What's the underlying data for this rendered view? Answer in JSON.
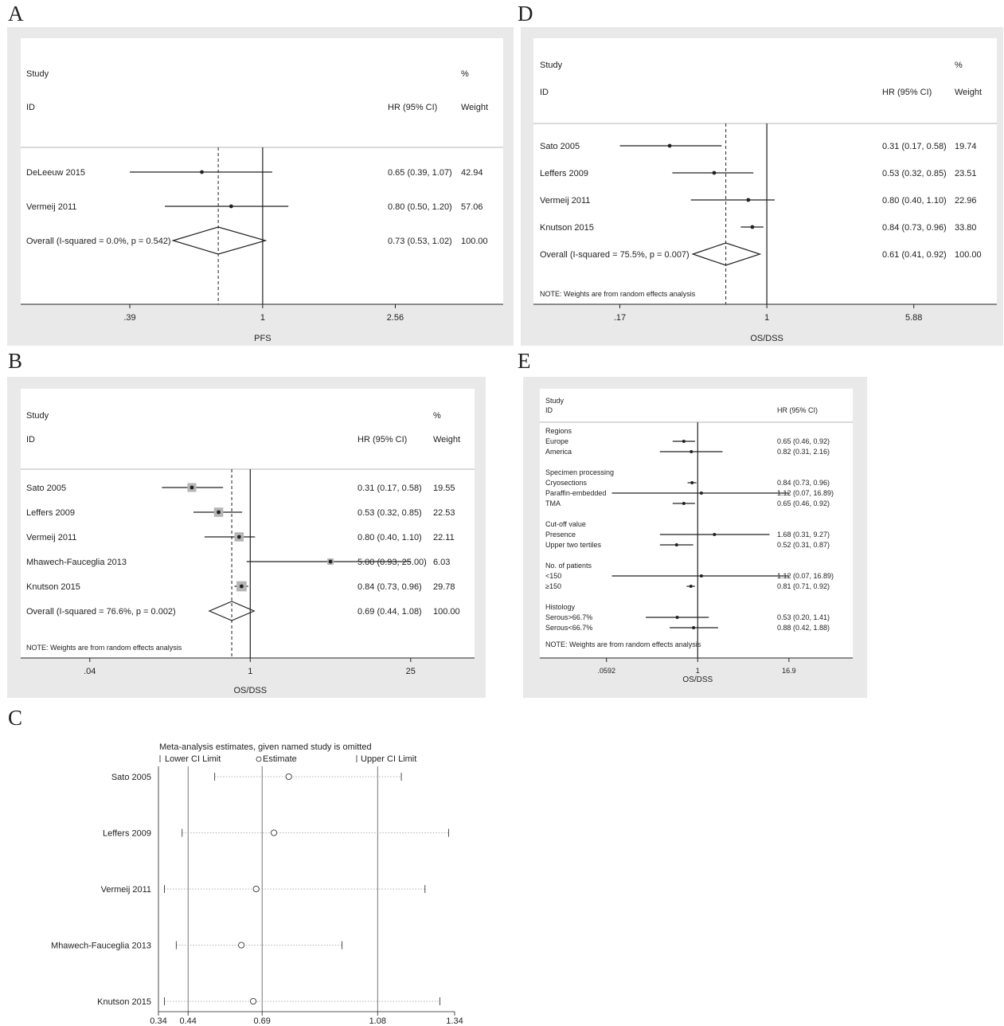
{
  "colors": {
    "panel_bg": "#e9e9e9",
    "plot_bg": "#ffffff",
    "ink": "#222222",
    "box": "#b5b5b5",
    "ci_dotted": "#999999"
  },
  "chart_data": [
    {
      "panel": "A",
      "type": "forest",
      "headers": {
        "study_top": "Study",
        "study_id": "ID",
        "hr": "HR (95% CI)",
        "weight_top": "%",
        "weight": "Weight"
      },
      "studies": [
        {
          "label": "DeLeeuw 2015",
          "hr": 0.65,
          "lo": 0.39,
          "hi": 1.07,
          "hr_text": "0.65 (0.39, 1.07)",
          "weight": "42.94"
        },
        {
          "label": "Vermeij 2011",
          "hr": 0.8,
          "lo": 0.5,
          "hi": 1.2,
          "hr_text": "0.80 (0.50, 1.20)",
          "weight": "57.06"
        }
      ],
      "overall": {
        "label": "Overall  (I-squared = 0.0%, p = 0.542)",
        "hr": 0.73,
        "lo": 0.53,
        "hi": 1.02,
        "hr_text": "0.73 (0.53, 1.02)",
        "weight": "100.00"
      },
      "note": "",
      "x_ticks": [
        {
          "value": 0.39,
          "label": ".39"
        },
        {
          "value": 1,
          "label": "1"
        },
        {
          "value": 2.56,
          "label": "2.56"
        }
      ],
      "x_scale": "log",
      "xlim": [
        0.18,
        5.5
      ],
      "xlabel": "PFS",
      "reference": 1,
      "box_style": "dot"
    },
    {
      "panel": "B",
      "type": "forest",
      "headers": {
        "study_top": "Study",
        "study_id": "ID",
        "hr": "HR (95% CI)",
        "weight_top": "%",
        "weight": "Weight"
      },
      "studies": [
        {
          "label": "Sato 2005",
          "hr": 0.31,
          "lo": 0.17,
          "hi": 0.58,
          "hr_text": "0.31 (0.17, 0.58)",
          "weight": "19.55"
        },
        {
          "label": "Leffers 2009",
          "hr": 0.53,
          "lo": 0.32,
          "hi": 0.85,
          "hr_text": "0.53 (0.32, 0.85)",
          "weight": "22.53"
        },
        {
          "label": "Vermeij 2011",
          "hr": 0.8,
          "lo": 0.4,
          "hi": 1.1,
          "hr_text": "0.80 (0.40, 1.10)",
          "weight": "22.11"
        },
        {
          "label": "Mhawech-Fauceglia 2013",
          "hr": 5.0,
          "lo": 0.93,
          "hi": 25.0,
          "hr_text": "5.00 (0.93, 25.00)",
          "weight": "6.03"
        },
        {
          "label": "Knutson 2015",
          "hr": 0.84,
          "lo": 0.73,
          "hi": 0.96,
          "hr_text": "0.84 (0.73, 0.96)",
          "weight": "29.78"
        }
      ],
      "overall": {
        "label": "Overall  (I-squared = 76.6%, p = 0.002)",
        "hr": 0.69,
        "lo": 0.44,
        "hi": 1.08,
        "hr_text": "0.69 (0.44, 1.08)",
        "weight": "100.00"
      },
      "note": "NOTE: Weights are from random effects analysis",
      "x_ticks": [
        {
          "value": 0.04,
          "label": ".04"
        },
        {
          "value": 1,
          "label": "1"
        },
        {
          "value": 25,
          "label": "25"
        }
      ],
      "x_scale": "log",
      "xlim": [
        0.01,
        90
      ],
      "xlabel": "OS/DSS",
      "reference": 1,
      "box_style": "square"
    },
    {
      "panel": "D",
      "type": "forest",
      "headers": {
        "study_top": "Study",
        "study_id": "ID",
        "hr": "HR (95% CI)",
        "weight_top": "%",
        "weight": "Weight"
      },
      "studies": [
        {
          "label": "Sato 2005",
          "hr": 0.31,
          "lo": 0.17,
          "hi": 0.58,
          "hr_text": "0.31 (0.17, 0.58)",
          "weight": "19.74"
        },
        {
          "label": "Leffers 2009",
          "hr": 0.53,
          "lo": 0.32,
          "hi": 0.85,
          "hr_text": "0.53 (0.32, 0.85)",
          "weight": "23.51"
        },
        {
          "label": "Vermeij 2011",
          "hr": 0.8,
          "lo": 0.4,
          "hi": 1.1,
          "hr_text": "0.80 (0.40, 1.10)",
          "weight": "22.96"
        },
        {
          "label": "Knutson 2015",
          "hr": 0.84,
          "lo": 0.73,
          "hi": 0.96,
          "hr_text": "0.84 (0.73, 0.96)",
          "weight": "33.80"
        }
      ],
      "overall": {
        "label": "Overall  (I-squared = 75.5%, p = 0.007)",
        "hr": 0.61,
        "lo": 0.41,
        "hi": 0.92,
        "hr_text": "0.61 (0.41, 0.92)",
        "weight": "100.00"
      },
      "note": "NOTE: Weights are from random effects analysis",
      "x_ticks": [
        {
          "value": 0.17,
          "label": ".17"
        },
        {
          "value": 1,
          "label": "1"
        },
        {
          "value": 5.88,
          "label": "5.88"
        }
      ],
      "x_scale": "log",
      "xlim": [
        0.06,
        16
      ],
      "xlabel": "OS/DSS",
      "reference": 1,
      "box_style": "dot"
    },
    {
      "panel": "E",
      "type": "forest_subgroup",
      "headers": {
        "study_top": "Study",
        "study_id": "ID",
        "hr": "HR (95% CI)"
      },
      "groups": [
        {
          "title": "Regions",
          "rows": [
            {
              "label": "Europe",
              "hr": 0.65,
              "lo": 0.46,
              "hi": 0.92,
              "hr_text": "0.65 (0.46, 0.92)"
            },
            {
              "label": "America",
              "hr": 0.82,
              "lo": 0.31,
              "hi": 2.16,
              "hr_text": "0.82 (0.31, 2.16)"
            }
          ]
        },
        {
          "title": "Specimen processing",
          "rows": [
            {
              "label": "Cryosections",
              "hr": 0.84,
              "lo": 0.73,
              "hi": 0.96,
              "hr_text": "0.84 (0.73, 0.96)"
            },
            {
              "label": "Paraffin-embedded",
              "hr": 1.12,
              "lo": 0.07,
              "hi": 16.89,
              "hr_text": "1.12 (0.07, 16.89)"
            },
            {
              "label": "TMA",
              "hr": 0.65,
              "lo": 0.46,
              "hi": 0.92,
              "hr_text": "0.65 (0.46, 0.92)"
            }
          ]
        },
        {
          "title": "Cut-off value",
          "rows": [
            {
              "label": "Presence",
              "hr": 1.68,
              "lo": 0.31,
              "hi": 9.27,
              "hr_text": "1.68 (0.31, 9.27)"
            },
            {
              "label": "Upper two tertiles",
              "hr": 0.52,
              "lo": 0.31,
              "hi": 0.87,
              "hr_text": "0.52 (0.31, 0.87)"
            }
          ]
        },
        {
          "title": "No. of patients",
          "rows": [
            {
              "label": "<150",
              "hr": 1.12,
              "lo": 0.07,
              "hi": 16.89,
              "hr_text": "1.12 (0.07, 16.89)"
            },
            {
              "label": "≥150",
              "hr": 0.81,
              "lo": 0.71,
              "hi": 0.92,
              "hr_text": "0.81 (0.71, 0.92)"
            }
          ]
        },
        {
          "title": "Histology",
          "rows": [
            {
              "label": "Serous>66.7%",
              "hr": 0.53,
              "lo": 0.2,
              "hi": 1.41,
              "hr_text": "0.53 (0.20, 1.41)"
            },
            {
              "label": "Serous<66.7%",
              "hr": 0.88,
              "lo": 0.42,
              "hi": 1.88,
              "hr_text": "0.88 (0.42, 1.88)"
            }
          ]
        }
      ],
      "note": "NOTE: Weights are from random effects analysis",
      "x_ticks": [
        {
          "value": 0.0592,
          "label": ".0592"
        },
        {
          "value": 1,
          "label": "1"
        },
        {
          "value": 16.9,
          "label": "16.9"
        }
      ],
      "x_scale": "log",
      "xlim": [
        0.0075,
        122
      ],
      "xlabel": "OS/DSS",
      "reference": 1
    },
    {
      "panel": "C",
      "type": "sensitivity",
      "title": "Meta-analysis estimates, given named study is omitted",
      "legend": [
        "Lower CI Limit",
        "Estimate",
        "Upper CI Limit"
      ],
      "studies": [
        {
          "label": "Sato 2005",
          "est": 0.78,
          "lo": 0.53,
          "hi": 1.16
        },
        {
          "label": "Leffers 2009",
          "est": 0.73,
          "lo": 0.42,
          "hi": 1.32
        },
        {
          "label": "Vermeij 2011",
          "est": 0.67,
          "lo": 0.36,
          "hi": 1.24
        },
        {
          "label": "Mhawech-Fauceglia 2013",
          "est": 0.62,
          "lo": 0.4,
          "hi": 0.96
        },
        {
          "label": "Knutson 2015",
          "est": 0.66,
          "lo": 0.36,
          "hi": 1.29
        }
      ],
      "x_ticks": [
        {
          "value": 0.34,
          "label": "0.34"
        },
        {
          "value": 0.44,
          "label": "0.44"
        },
        {
          "value": 0.69,
          "label": "0.69"
        },
        {
          "value": 1.08,
          "label": "1.08"
        },
        {
          "value": 1.34,
          "label": "1.34"
        }
      ],
      "xlim": [
        0.34,
        1.34
      ]
    }
  ]
}
